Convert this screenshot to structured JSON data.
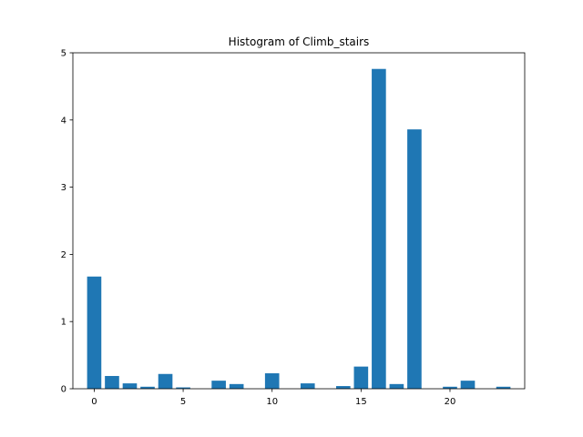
{
  "chart_data": {
    "type": "bar",
    "title": "Histogram of Climb_stairs",
    "xlabel": "",
    "ylabel": "",
    "x": [
      0,
      1,
      2,
      3,
      4,
      5,
      6,
      7,
      8,
      9,
      10,
      11,
      12,
      13,
      14,
      15,
      16,
      17,
      18,
      19,
      20,
      21,
      22,
      23
    ],
    "values": [
      1.67,
      0.19,
      0.08,
      0.03,
      0.22,
      0.02,
      0.0,
      0.12,
      0.07,
      0.0,
      0.23,
      0.0,
      0.08,
      0.0,
      0.04,
      0.33,
      4.76,
      0.07,
      3.86,
      0.0,
      0.03,
      0.12,
      0.0,
      0.03
    ],
    "xlim": [
      -1.2,
      24.2
    ],
    "ylim": [
      0,
      5
    ],
    "xticks": [
      0,
      5,
      10,
      15,
      20
    ],
    "yticks": [
      0,
      1,
      2,
      3,
      4,
      5
    ],
    "grid": false,
    "bar_color": "#1f77b4"
  }
}
